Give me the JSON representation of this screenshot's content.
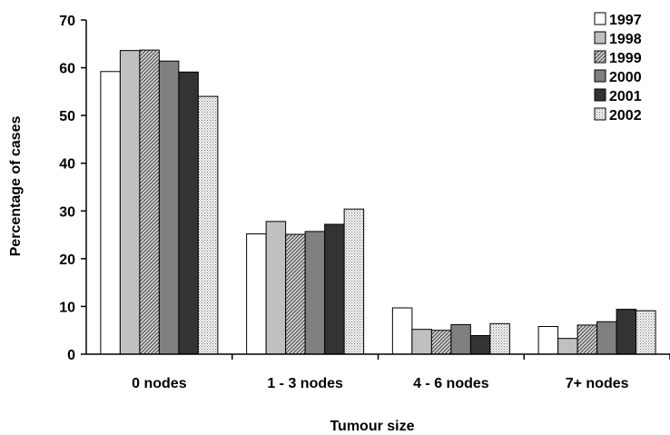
{
  "chart_data": {
    "type": "bar",
    "title": "",
    "xlabel": "Tumour size",
    "ylabel": "Percentage of cases",
    "categories": [
      "0 nodes",
      "1 - 3 nodes",
      "4 - 6 nodes",
      "7+ nodes"
    ],
    "ylim": [
      0,
      70
    ],
    "yticks": [
      "0",
      "10",
      "20",
      "30",
      "40",
      "50",
      "60",
      "70"
    ],
    "legend_position": "top-right",
    "grid": false,
    "series": [
      {
        "name": "1997",
        "values": [
          59.2,
          25.2,
          9.7,
          5.8
        ],
        "fill": "#ffffff",
        "pattern": "solid"
      },
      {
        "name": "1998",
        "values": [
          63.6,
          27.8,
          5.2,
          3.3
        ],
        "fill": "#c0c0c0",
        "pattern": "solid"
      },
      {
        "name": "1999",
        "values": [
          63.7,
          25.1,
          5.0,
          6.1
        ],
        "fill": "#909090",
        "pattern": "hatch"
      },
      {
        "name": "2000",
        "values": [
          61.4,
          25.7,
          6.2,
          6.8
        ],
        "fill": "#808080",
        "pattern": "solid"
      },
      {
        "name": "2001",
        "values": [
          59.1,
          27.2,
          3.9,
          9.4
        ],
        "fill": "#333333",
        "pattern": "solid"
      },
      {
        "name": "2002",
        "values": [
          54.0,
          30.4,
          6.4,
          9.1
        ],
        "fill": "#eeeeee",
        "pattern": "dots"
      }
    ]
  }
}
